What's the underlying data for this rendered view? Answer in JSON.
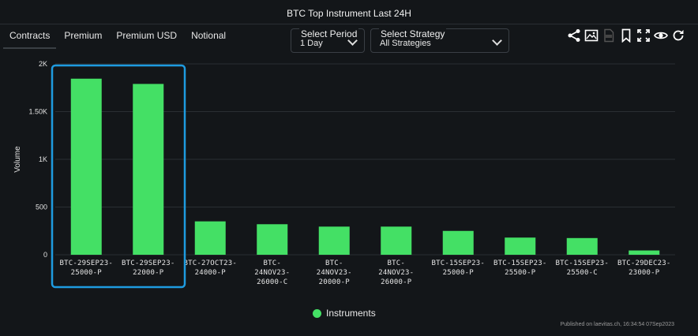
{
  "title": "BTC Top Instrument Last 24H",
  "tabs": [
    {
      "label": "Contracts",
      "active": true
    },
    {
      "label": "Premium",
      "active": false
    },
    {
      "label": "Premium USD",
      "active": false
    },
    {
      "label": "Notional",
      "active": false
    }
  ],
  "period_select": {
    "label": "Select Period",
    "value": "1 Day"
  },
  "strategy_select": {
    "label": "Select Strategy",
    "value": "All Strategies"
  },
  "toolbar_icons": [
    "share-icon",
    "image-download-icon",
    "csv-download-icon",
    "bookmark-icon",
    "fullscreen-icon",
    "eye-icon",
    "refresh-icon"
  ],
  "chart_data": {
    "type": "bar",
    "ylabel": "Volume",
    "ylim": [
      0,
      2000
    ],
    "yticks": [
      0,
      500,
      1000,
      1500,
      2000
    ],
    "ytick_labels": [
      "0",
      "500",
      "1K",
      "1.50K",
      "2K"
    ],
    "categories": [
      [
        "BTC-29SEP23-",
        "25000-P"
      ],
      [
        "BTC-29SEP23-",
        "22000-P"
      ],
      [
        "BTC-27OCT23-",
        "24000-P"
      ],
      [
        "BTC-",
        "24NOV23-",
        "26000-C"
      ],
      [
        "BTC-",
        "24NOV23-",
        "20000-P"
      ],
      [
        "BTC-",
        "24NOV23-",
        "26000-P"
      ],
      [
        "BTC-15SEP23-",
        "25000-P"
      ],
      [
        "BTC-15SEP23-",
        "25500-P"
      ],
      [
        "BTC-15SEP23-",
        "25500-C"
      ],
      [
        "BTC-29DEC23-",
        "23000-P"
      ]
    ],
    "series": [
      {
        "name": "Instruments",
        "color": "#44e065",
        "values": [
          1845,
          1790,
          350,
          320,
          295,
          295,
          250,
          180,
          175,
          45
        ]
      }
    ],
    "grid": true,
    "legend_position": "bottom",
    "highlight_color": "#1e9be0"
  },
  "legend": {
    "label": "Instruments"
  },
  "credit": "Published on laevitas.ch, 16:34:54 07Sep2023"
}
